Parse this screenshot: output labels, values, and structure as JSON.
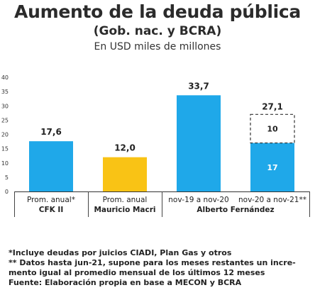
{
  "header": {
    "title": "Aumento de la deuda pública",
    "subtitle": "(Gob. nac. y BCRA)",
    "unit": "En USD miles de millones"
  },
  "chart_data": {
    "type": "bar",
    "stacked": true,
    "ylim": [
      0,
      40
    ],
    "yticks": [
      0,
      5,
      10,
      15,
      20,
      25,
      30,
      35,
      40
    ],
    "grid": false,
    "categories": [
      "Prom. anual*",
      "Prom. anual",
      "nov-19 a nov-20",
      "nov-20 a nov-21**"
    ],
    "groups": [
      {
        "label": "CFK II",
        "categories": [
          0
        ]
      },
      {
        "label": "Mauricio Macri",
        "categories": [
          1
        ]
      },
      {
        "label": "Alberto Fernández",
        "categories": [
          2,
          3
        ]
      }
    ],
    "bars": [
      {
        "category": "Prom. anual*",
        "value": 17.6,
        "label": "17,6",
        "color": "#1fa8e9"
      },
      {
        "category": "Prom. anual",
        "value": 12.0,
        "label": "12,0",
        "color": "#f9c315"
      },
      {
        "category": "nov-19 a nov-20",
        "value": 33.7,
        "label": "33,7",
        "color": "#1fa8e9"
      },
      {
        "category": "nov-20 a nov-21**",
        "value": 27.1,
        "label": "27,1",
        "segments": [
          {
            "value": 17,
            "label": "17",
            "color": "#1fa8e9",
            "style": "solid"
          },
          {
            "value": 10,
            "label": "10",
            "color": "#ffffff",
            "style": "dashed"
          }
        ]
      }
    ]
  },
  "footnotes": [
    "*Incluye deudas por juicios CIADI, Plan Gas y otros",
    "** Datos hasta jun-21, supone para los meses restantes un incre-",
    "mento igual al promedio mensual de los últimos 12 meses",
    "Fuente: Elaboración propia en base a MECON y BCRA"
  ]
}
